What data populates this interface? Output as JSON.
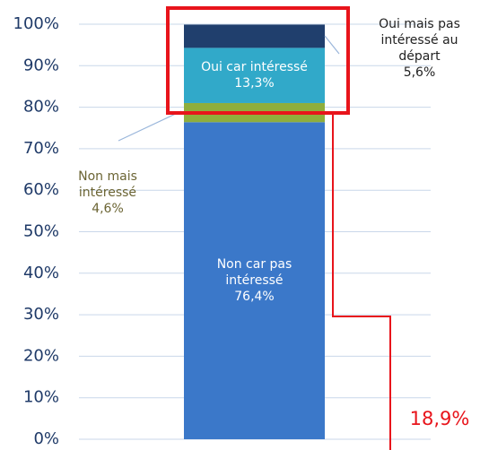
{
  "chart_data": {
    "type": "stacked_bar",
    "categories": [
      null
    ],
    "series": [
      {
        "name": "Non car pas intéressé",
        "color": "#3b78c9",
        "values": [
          76.4
        ],
        "value_labels": [
          "76,4%"
        ]
      },
      {
        "name": "Non mais intéressé",
        "color": "#8fae3c",
        "values": [
          4.6
        ],
        "value_labels": [
          "4,6%"
        ]
      },
      {
        "name": "Oui car intéressé",
        "color": "#31a9c9",
        "values": [
          13.3
        ],
        "value_labels": [
          "13,3%"
        ]
      },
      {
        "name": "Oui mais pas intéressé au départ",
        "color": "#203f6d",
        "values": [
          5.6
        ],
        "value_labels": [
          "5,6%"
        ]
      }
    ],
    "ylim": [
      0,
      100
    ],
    "yticks": [
      {
        "value": 0,
        "label": "0%"
      },
      {
        "value": 10,
        "label": "10%"
      },
      {
        "value": 20,
        "label": "20%"
      },
      {
        "value": 30,
        "label": "30%"
      },
      {
        "value": 40,
        "label": "40%"
      },
      {
        "value": 50,
        "label": "50%"
      },
      {
        "value": 60,
        "label": "60%"
      },
      {
        "value": 70,
        "label": "70%"
      },
      {
        "value": 80,
        "label": "80%"
      },
      {
        "value": 90,
        "label": "90%"
      },
      {
        "value": 100,
        "label": "100%"
      }
    ],
    "grid": true,
    "annotations": [
      {
        "text": "18,9%",
        "color": "#e8141b"
      }
    ]
  }
}
